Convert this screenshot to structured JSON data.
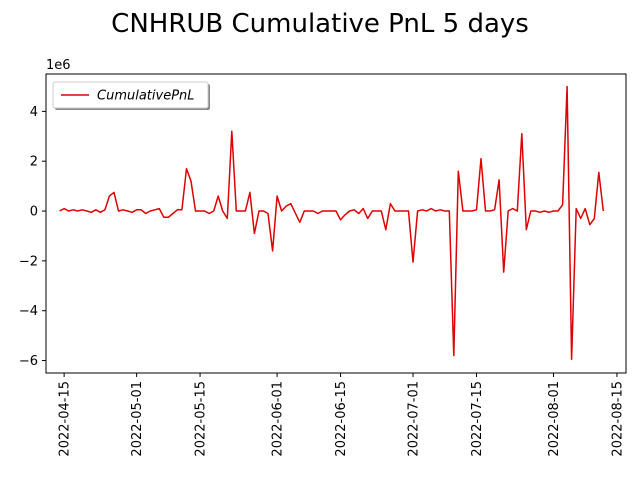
{
  "chart_data": {
    "type": "line",
    "title": "CNHRUB Cumulative PnL 5 days",
    "xlabel": "",
    "ylabel": "",
    "y_scale_label": "1e6",
    "y_multiplier": 1000000,
    "ylim": [
      -6.5,
      5.5
    ],
    "xlim": [
      "2022-04-11",
      "2022-08-17"
    ],
    "grid": false,
    "legend_position": "top-left",
    "colors": {
      "series": "#e00000",
      "axis": "#000000",
      "background": "#ffffff"
    },
    "x_ticks": [
      "2022-04-15",
      "2022-05-01",
      "2022-05-15",
      "2022-06-01",
      "2022-06-15",
      "2022-07-01",
      "2022-07-15",
      "2022-08-01",
      "2022-08-15"
    ],
    "y_ticks": [
      -6,
      -4,
      -2,
      0,
      2,
      4
    ],
    "series": [
      {
        "name": "CumulativePnL",
        "x": [
          "2022-04-14",
          "2022-04-15",
          "2022-04-16",
          "2022-04-17",
          "2022-04-18",
          "2022-04-19",
          "2022-04-20",
          "2022-04-21",
          "2022-04-22",
          "2022-04-23",
          "2022-04-24",
          "2022-04-25",
          "2022-04-26",
          "2022-04-27",
          "2022-04-28",
          "2022-04-29",
          "2022-04-30",
          "2022-05-01",
          "2022-05-02",
          "2022-05-03",
          "2022-05-04",
          "2022-05-05",
          "2022-05-06",
          "2022-05-07",
          "2022-05-08",
          "2022-05-09",
          "2022-05-10",
          "2022-05-11",
          "2022-05-12",
          "2022-05-13",
          "2022-05-14",
          "2022-05-15",
          "2022-05-16",
          "2022-05-17",
          "2022-05-18",
          "2022-05-19",
          "2022-05-20",
          "2022-05-21",
          "2022-05-22",
          "2022-05-23",
          "2022-05-24",
          "2022-05-25",
          "2022-05-26",
          "2022-05-27",
          "2022-05-28",
          "2022-05-29",
          "2022-05-30",
          "2022-05-31",
          "2022-06-01",
          "2022-06-02",
          "2022-06-03",
          "2022-06-04",
          "2022-06-06",
          "2022-06-07",
          "2022-06-08",
          "2022-06-09",
          "2022-06-10",
          "2022-06-11",
          "2022-06-12",
          "2022-06-13",
          "2022-06-14",
          "2022-06-15",
          "2022-06-16",
          "2022-06-17",
          "2022-06-18",
          "2022-06-19",
          "2022-06-20",
          "2022-06-21",
          "2022-06-22",
          "2022-06-23",
          "2022-06-24",
          "2022-06-25",
          "2022-06-26",
          "2022-06-27",
          "2022-06-28",
          "2022-06-29",
          "2022-06-30",
          "2022-07-01",
          "2022-07-02",
          "2022-07-03",
          "2022-07-04",
          "2022-07-05",
          "2022-07-06",
          "2022-07-07",
          "2022-07-08",
          "2022-07-09",
          "2022-07-10",
          "2022-07-11",
          "2022-07-12",
          "2022-07-13",
          "2022-07-14",
          "2022-07-15",
          "2022-07-16",
          "2022-07-17",
          "2022-07-18",
          "2022-07-19",
          "2022-07-20",
          "2022-07-21",
          "2022-07-22",
          "2022-07-23",
          "2022-07-24",
          "2022-07-25",
          "2022-07-26",
          "2022-07-27",
          "2022-07-28",
          "2022-07-29",
          "2022-07-30",
          "2022-07-31",
          "2022-08-01",
          "2022-08-02",
          "2022-08-03",
          "2022-08-04",
          "2022-08-05",
          "2022-08-06",
          "2022-08-07",
          "2022-08-08",
          "2022-08-09",
          "2022-08-10",
          "2022-08-11",
          "2022-08-12"
        ],
        "values": [
          0.0,
          0.1,
          0.0,
          0.05,
          0.0,
          0.05,
          0.0,
          -0.05,
          0.05,
          -0.05,
          0.05,
          0.6,
          0.75,
          0.0,
          0.05,
          0.0,
          -0.05,
          0.05,
          0.05,
          -0.1,
          0.0,
          0.05,
          0.1,
          -0.25,
          -0.25,
          -0.1,
          0.05,
          0.05,
          1.7,
          1.2,
          0.0,
          0.0,
          0.0,
          -0.1,
          0.0,
          0.6,
          0.0,
          -0.3,
          3.2,
          0.0,
          0.0,
          0.0,
          0.75,
          -0.9,
          0.0,
          0.0,
          -0.1,
          -1.6,
          0.6,
          0.0,
          0.2,
          0.3,
          -0.45,
          0.0,
          0.0,
          0.0,
          -0.1,
          0.0,
          0.0,
          0.0,
          0.0,
          -0.35,
          -0.15,
          0.0,
          0.05,
          -0.1,
          0.1,
          -0.3,
          0.0,
          0.0,
          0.0,
          -0.75,
          0.3,
          0.0,
          0.0,
          0.0,
          0.0,
          -2.05,
          0.0,
          0.05,
          0.0,
          0.1,
          0.0,
          0.05,
          0.0,
          0.0,
          -5.8,
          1.6,
          0.0,
          0.0,
          0.0,
          0.05,
          2.1,
          0.0,
          0.0,
          0.05,
          1.25,
          -2.45,
          0.0,
          0.1,
          0.0,
          3.1,
          -0.75,
          0.0,
          0.0,
          -0.05,
          0.0,
          -0.05,
          0.0,
          0.0,
          0.25,
          5.0,
          -5.95,
          0.1,
          -0.3,
          0.1,
          -0.55,
          -0.3,
          1.55,
          0.0
        ]
      }
    ]
  }
}
